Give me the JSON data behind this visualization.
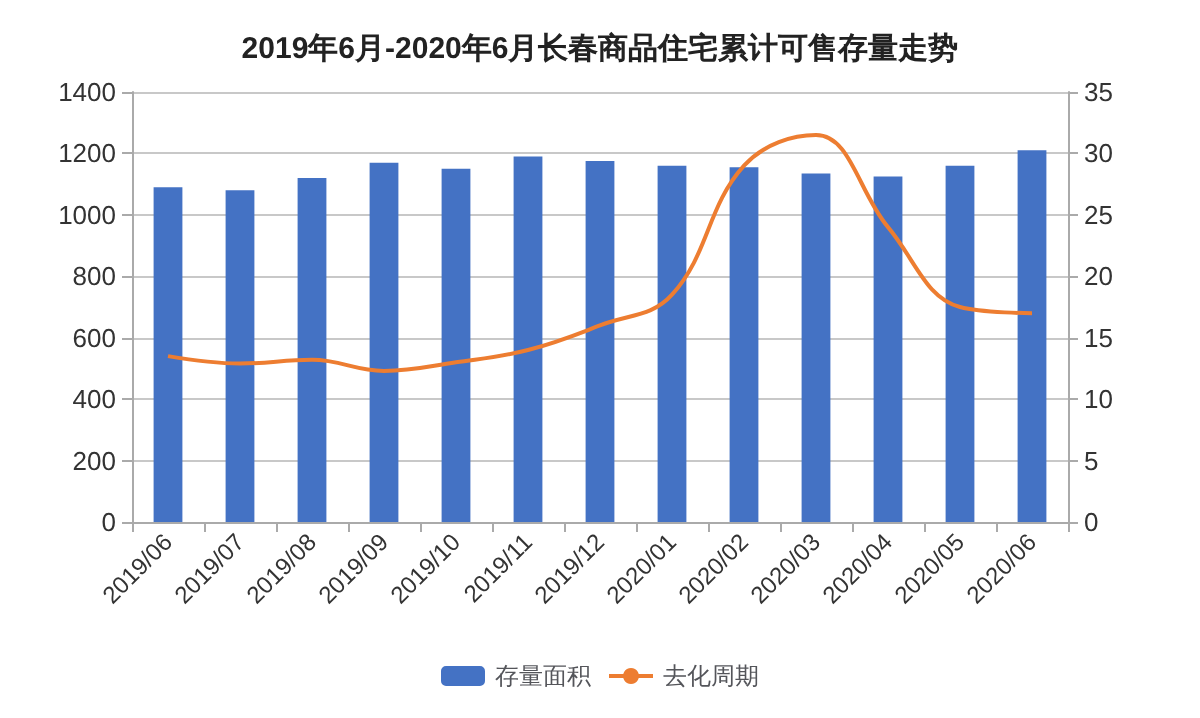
{
  "chart_data": {
    "type": "bar",
    "title": "2019年6月-2020年6月长春商品住宅累计可售存量走势",
    "categories": [
      "2019/06",
      "2019/07",
      "2019/08",
      "2019/09",
      "2019/10",
      "2019/11",
      "2019/12",
      "2020/01",
      "2020/02",
      "2020/03",
      "2020/04",
      "2020/05",
      "2020/06"
    ],
    "series": [
      {
        "name": "存量面积",
        "color": "#4472c4",
        "values": [
          1090,
          1080,
          1120,
          1170,
          1150,
          1190,
          1175,
          1160,
          1155,
          1135,
          1125,
          1160,
          1210
        ]
      },
      {
        "name": "去化周期",
        "type": "line",
        "axis": "y2",
        "color": "#ed7d31",
        "values": [
          13.5,
          12.9,
          13.2,
          12.3,
          13,
          14,
          16,
          18.5,
          29,
          31.5,
          24,
          17.5,
          17
        ]
      }
    ],
    "ylim": [
      0,
      1400
    ],
    "yticks": [
      0,
      200,
      400,
      600,
      800,
      1000,
      1200,
      1400
    ],
    "y2lim": [
      0,
      35
    ],
    "y2ticks": [
      0,
      5,
      10,
      15,
      20,
      25,
      30,
      35
    ],
    "grid": "y",
    "legend": "bottom",
    "marker": "none"
  }
}
